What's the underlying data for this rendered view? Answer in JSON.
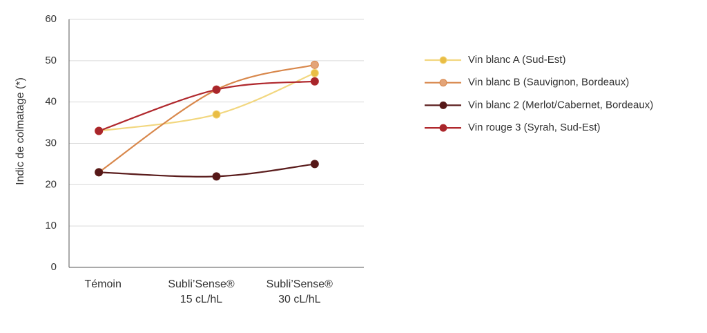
{
  "chart_data": {
    "type": "line",
    "y_label": "Indic de colmatage (*)",
    "categories": [
      "Témoin",
      "Subli’Sense®\n15 cL/hL",
      "Subli’Sense®\n30 cL/hL"
    ],
    "series": [
      {
        "name": "Vin blanc A (Sud-Est)",
        "color": "#e9bd45",
        "line_color": "#f2d77f",
        "values": [
          33,
          37,
          47
        ]
      },
      {
        "name": "Vin blanc B (Sauvignon, Bordeaux)",
        "color": "#e3a478",
        "line_color": "#d8874b",
        "values": [
          23,
          43,
          49
        ]
      },
      {
        "name": "Vin blanc 2 (Merlot/Cabernet, Bordeaux)",
        "color": "#561818",
        "line_color": "#5a1c1c",
        "values": [
          23,
          22,
          25
        ]
      },
      {
        "name": "Vin rouge 3 (Syrah, Sud-Est)",
        "color": "#a8262b",
        "line_color": "#b0282d",
        "values": [
          33,
          43,
          45
        ]
      }
    ],
    "ylim": [
      0,
      60
    ],
    "yticks": [
      0,
      10,
      20,
      30,
      40,
      50,
      60
    ],
    "grid": true,
    "legend": "right"
  }
}
